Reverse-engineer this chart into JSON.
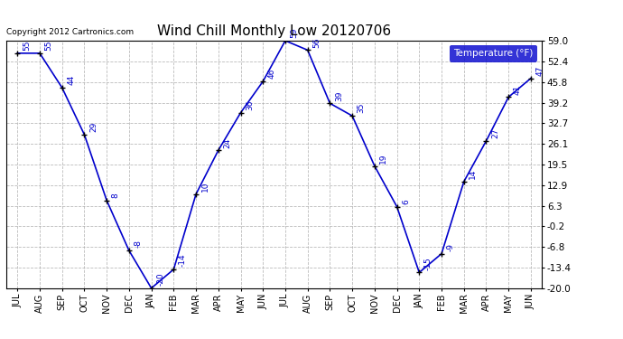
{
  "title": "Wind Chill Monthly Low 20120706",
  "copyright": "Copyright 2012 Cartronics.com",
  "legend_label": "Temperature (°F)",
  "months": [
    "JUL",
    "AUG",
    "SEP",
    "OCT",
    "NOV",
    "DEC",
    "JAN",
    "FEB",
    "MAR",
    "APR",
    "MAY",
    "JUN",
    "JUL",
    "AUG",
    "SEP",
    "OCT",
    "NOV",
    "DEC",
    "JAN",
    "FEB",
    "MAR",
    "APR",
    "MAY",
    "JUN"
  ],
  "values": [
    55,
    55,
    44,
    29,
    8,
    -8,
    -20,
    -14,
    10,
    24,
    36,
    46,
    59,
    56,
    39,
    35,
    19,
    6,
    -15,
    -9,
    14,
    27,
    41,
    47
  ],
  "ylim": [
    -20.0,
    59.0
  ],
  "yticks_fahrenheit": [
    -20.0,
    -13.4,
    -6.8,
    -0.2,
    6.3,
    12.9,
    19.5,
    26.1,
    32.7,
    39.2,
    45.8,
    52.4,
    59.0
  ],
  "line_color": "#0000cc",
  "marker_color": "#000000",
  "bg_color": "#ffffff",
  "grid_color": "#aaaaaa",
  "label_color": "#0000cc",
  "title_color": "#000000",
  "legend_bg": "#0000cc",
  "legend_fg": "#ffffff"
}
